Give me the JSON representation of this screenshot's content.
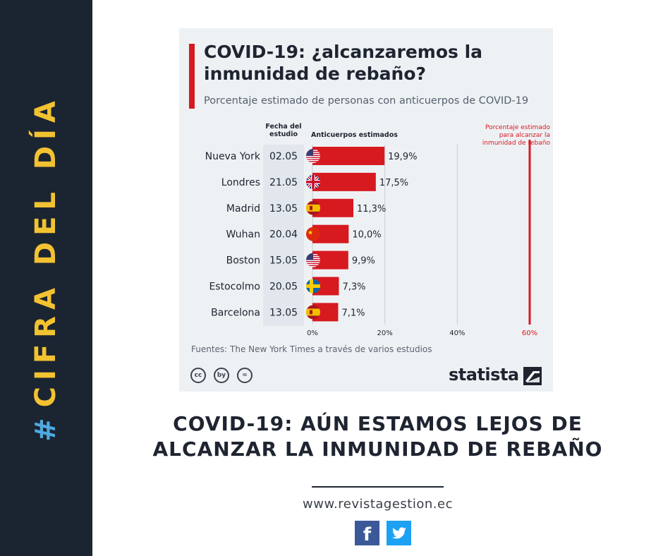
{
  "sidebar": {
    "hash": "#",
    "label": "CIFRA DEL DÍA"
  },
  "chart_data": {
    "type": "bar",
    "orientation": "horizontal",
    "title": "COVID-19: ¿alcanzaremos la inmunidad de rebaño?",
    "subtitle": "Porcentaje estimado de personas con anticuerpos de COVID-19",
    "col_date_header": "Fecha del estudio",
    "col_value_header": "Anticuerpos estimados",
    "threshold_label": "Porcentaje estimado para alcanzar la inmunidad de rebaño",
    "threshold": 60,
    "xlim": [
      0,
      60
    ],
    "ticks": [
      0,
      20,
      40,
      60
    ],
    "tick_labels": [
      "0%",
      "20%",
      "40%",
      "60%"
    ],
    "categories": [
      "Nueva York",
      "Londres",
      "Madrid",
      "Wuhan",
      "Boston",
      "Estocolmo",
      "Barcelona"
    ],
    "dates": [
      "02.05",
      "21.05",
      "13.05",
      "20.04",
      "15.05",
      "20.05",
      "13.05"
    ],
    "flags": [
      "us-flag",
      "uk-flag",
      "spain-flag",
      "china-flag",
      "us-flag",
      "sweden-flag",
      "spain-flag"
    ],
    "values": [
      19.9,
      17.5,
      11.3,
      10.0,
      9.9,
      7.3,
      7.1
    ],
    "value_labels": [
      "19,9%",
      "17,5%",
      "11,3%",
      "10,0%",
      "9,9%",
      "7,3%",
      "7,1%"
    ],
    "source": "Fuentes: The New York Times a través de varios estudios",
    "colors": {
      "bar": "#d71920",
      "threshold": "#d71920",
      "grid": "#c9cfd6",
      "text": "#1e2430"
    }
  },
  "branding": {
    "name": "statista",
    "cc_icons": [
      "cc",
      "by",
      "="
    ]
  },
  "headline": {
    "line1": "COVID-19: AÚN ESTAMOS LEJOS DE",
    "line2": "ALCANZAR LA INMUNIDAD DE REBAÑO"
  },
  "footer": {
    "website": "www.revistagestion.ec",
    "social": [
      "facebook-icon",
      "twitter-icon"
    ],
    "fb_glyph": "f",
    "tw_glyph": "🐦"
  }
}
